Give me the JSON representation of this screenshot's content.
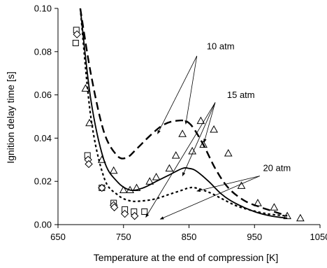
{
  "chart_data": {
    "type": "scatter",
    "xlabel": "Temperature at the end of compression [K]",
    "ylabel": "Ignition delay time [s]",
    "xlim": [
      650,
      1050
    ],
    "ylim": [
      0,
      0.1
    ],
    "x_ticks": [
      "650",
      "750",
      "850",
      "950",
      "1050"
    ],
    "y_ticks": [
      "0.00",
      "0.02",
      "0.04",
      "0.06",
      "0.08",
      "0.10"
    ],
    "grid": false,
    "legend": "none",
    "series": [
      {
        "marker": "square",
        "x": [
          678,
          677,
          695,
          717,
          735,
          752,
          766,
          782
        ],
        "y": [
          0.09,
          0.084,
          0.032,
          0.017,
          0.01,
          0.007,
          0.006,
          0.006
        ]
      },
      {
        "marker": "diamond",
        "x": [
          679,
          696,
          697,
          717,
          735,
          736,
          752,
          767
        ],
        "y": [
          0.088,
          0.03,
          0.028,
          0.017,
          0.009,
          0.008,
          0.005,
          0.004
        ]
      },
      {
        "marker": "triangle",
        "x": [
          692,
          698,
          717,
          735,
          750,
          760,
          770,
          790,
          800,
          820,
          830,
          840,
          855,
          868,
          872,
          888,
          910,
          930,
          955,
          980,
          1000,
          1020
        ],
        "y": [
          0.063,
          0.047,
          0.03,
          0.025,
          0.016,
          0.016,
          0.017,
          0.02,
          0.022,
          0.026,
          0.032,
          0.042,
          0.034,
          0.048,
          0.037,
          0.044,
          0.033,
          0.018,
          0.01,
          0.008,
          0.004,
          0.003
        ]
      },
      {
        "line": "dash",
        "x": [
          684,
          700,
          720,
          740,
          755,
          770,
          790,
          810,
          830,
          850,
          870,
          890,
          910,
          935,
          960,
          980,
          1000
        ],
        "y": [
          0.1,
          0.07,
          0.043,
          0.032,
          0.031,
          0.035,
          0.041,
          0.046,
          0.048,
          0.047,
          0.038,
          0.026,
          0.017,
          0.011,
          0.008,
          0.006,
          0.004
        ]
      },
      {
        "line": "solid",
        "x": [
          684,
          700,
          720,
          740,
          760,
          780,
          800,
          820,
          840,
          850,
          860,
          880,
          900,
          920,
          950,
          975,
          1000
        ],
        "y": [
          0.1,
          0.058,
          0.03,
          0.02,
          0.016,
          0.017,
          0.02,
          0.023,
          0.026,
          0.026,
          0.025,
          0.02,
          0.014,
          0.01,
          0.006,
          0.004,
          0.003
        ]
      },
      {
        "line": "dot",
        "x": [
          684,
          700,
          720,
          740,
          760,
          780,
          800,
          820,
          840,
          850,
          860,
          880,
          900,
          920,
          940,
          970,
          1000
        ],
        "y": [
          0.1,
          0.05,
          0.022,
          0.014,
          0.011,
          0.011,
          0.012,
          0.014,
          0.016,
          0.017,
          0.017,
          0.015,
          0.012,
          0.009,
          0.007,
          0.005,
          0.004
        ]
      }
    ],
    "annotations": [
      {
        "text": "10 atm",
        "label_at": [
          877,
          0.081
        ],
        "anchor_at": [
          862,
          0.078
        ],
        "arrow_to": [
          [
            802,
            0.042
          ],
          [
            845,
            0.0465
          ]
        ]
      },
      {
        "text": "15 atm",
        "label_at": [
          908,
          0.0585
        ],
        "anchor_at": [
          890,
          0.0565
        ],
        "arrow_to": [
          [
            873,
            0.038
          ],
          [
            840,
            0.0225
          ],
          [
            784,
            0.0034
          ]
        ]
      },
      {
        "text": "20 atm",
        "label_at": [
          963,
          0.0248
        ],
        "anchor_at": [
          958,
          0.0225
        ],
        "arrow_to": [
          [
            862,
            0.0155
          ],
          [
            806,
            0.0025
          ]
        ]
      }
    ]
  }
}
